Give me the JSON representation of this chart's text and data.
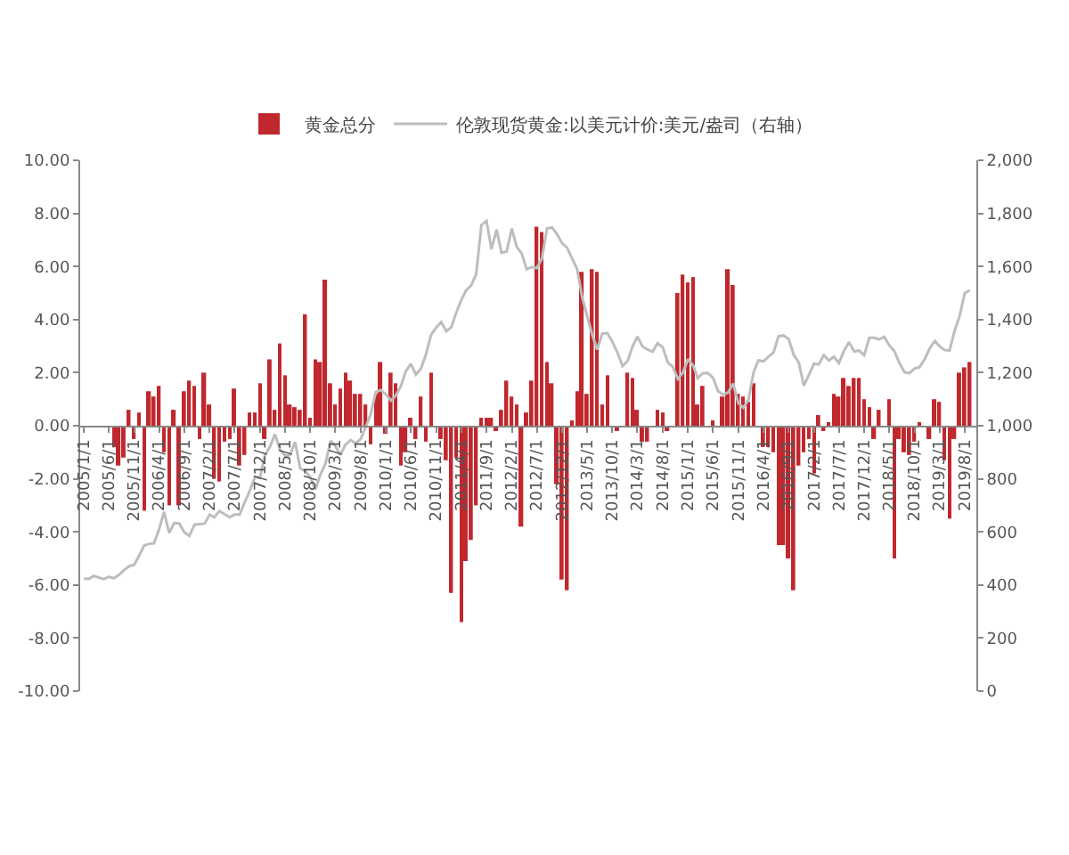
{
  "chart_data": {
    "type": "bar",
    "x": [
      "2005-01",
      "2005-02",
      "2005-03",
      "2005-04",
      "2005-05",
      "2005-06",
      "2005-07",
      "2005-08",
      "2005-09",
      "2005-10",
      "2005-11",
      "2005-12",
      "2006-01",
      "2006-02",
      "2006-03",
      "2006-04",
      "2006-05",
      "2006-06",
      "2006-07",
      "2006-08",
      "2006-09",
      "2006-10",
      "2006-11",
      "2006-12",
      "2007-01",
      "2007-02",
      "2007-03",
      "2007-04",
      "2007-05",
      "2007-06",
      "2007-07",
      "2007-08",
      "2007-09",
      "2007-10",
      "2007-11",
      "2007-12",
      "2008-01",
      "2008-02",
      "2008-03",
      "2008-04",
      "2008-05",
      "2008-06",
      "2008-07",
      "2008-08",
      "2008-09",
      "2008-10",
      "2008-11",
      "2008-12",
      "2009-01",
      "2009-02",
      "2009-03",
      "2009-04",
      "2009-05",
      "2009-06",
      "2009-07",
      "2009-08",
      "2009-09",
      "2009-10",
      "2009-11",
      "2009-12",
      "2010-01",
      "2010-02",
      "2010-03",
      "2010-04",
      "2010-05",
      "2010-06",
      "2010-07",
      "2010-08",
      "2010-09",
      "2010-10",
      "2010-11",
      "2010-12",
      "2011-01",
      "2011-02",
      "2011-03",
      "2011-04",
      "2011-05",
      "2011-06",
      "2011-07",
      "2011-08",
      "2011-09",
      "2011-10",
      "2011-11",
      "2011-12",
      "2012-01",
      "2012-02",
      "2012-03",
      "2012-04",
      "2012-05",
      "2012-06",
      "2012-07",
      "2012-08",
      "2012-09",
      "2012-10",
      "2012-11",
      "2012-12",
      "2013-01",
      "2013-02",
      "2013-03",
      "2013-04",
      "2013-05",
      "2013-06",
      "2013-07",
      "2013-08",
      "2013-09",
      "2013-10",
      "2013-11",
      "2013-12",
      "2014-01",
      "2014-02",
      "2014-03",
      "2014-04",
      "2014-05",
      "2014-06",
      "2014-07",
      "2014-08",
      "2014-09",
      "2014-10",
      "2014-11",
      "2014-12",
      "2015-01",
      "2015-02",
      "2015-03",
      "2015-04",
      "2015-05",
      "2015-06",
      "2015-07",
      "2015-08",
      "2015-09",
      "2015-10",
      "2015-11",
      "2015-12",
      "2016-01",
      "2016-02",
      "2016-03",
      "2016-04",
      "2016-05",
      "2016-06",
      "2016-07",
      "2016-08",
      "2016-09",
      "2016-10",
      "2016-11",
      "2016-12",
      "2017-01",
      "2017-02",
      "2017-03",
      "2017-04",
      "2017-05",
      "2017-06",
      "2017-07",
      "2017-08",
      "2017-09",
      "2017-10",
      "2017-11",
      "2017-12",
      "2018-01",
      "2018-02",
      "2018-03",
      "2018-04",
      "2018-05",
      "2018-06",
      "2018-07",
      "2018-08",
      "2018-09",
      "2018-10",
      "2018-11",
      "2018-12",
      "2019-01",
      "2019-02",
      "2019-03",
      "2019-04",
      "2019-05",
      "2019-06",
      "2019-07",
      "2019-08",
      "2019-09"
    ],
    "series": [
      {
        "name": "黄金总分",
        "color": "#c0282d",
        "values": [
          null,
          null,
          null,
          null,
          null,
          null,
          -0.8,
          -1.5,
          -1.2,
          0.6,
          -0.5,
          0.5,
          -3.2,
          1.3,
          1.1,
          1.5,
          -1.0,
          -3.0,
          0.6,
          -3.0,
          1.3,
          1.7,
          1.5,
          -0.5,
          2.0,
          0.8,
          -2.0,
          -2.1,
          -0.6,
          -0.5,
          1.4,
          -1.5,
          -1.1,
          0.5,
          0.5,
          1.6,
          -0.5,
          2.5,
          0.6,
          3.1,
          1.9,
          0.8,
          0.7,
          0.6,
          4.2,
          0.3,
          2.5,
          2.4,
          5.5,
          1.6,
          0.8,
          1.4,
          2.0,
          1.7,
          1.2,
          1.2,
          0.8,
          -0.7,
          1.2,
          2.4,
          -0.3,
          2.0,
          1.6,
          -1.5,
          -1.0,
          0.3,
          -0.5,
          1.1,
          -0.6,
          2.0,
          null,
          -0.5,
          -1.3,
          -6.3,
          -1.2,
          -7.4,
          -5.1,
          -4.3,
          -3.0,
          0.3,
          0.3,
          0.3,
          -0.2,
          0.6,
          1.7,
          1.1,
          0.8,
          -3.8,
          0.5,
          1.7,
          7.5,
          7.3,
          2.4,
          1.6,
          -2.2,
          -5.8,
          -6.2,
          0.2,
          1.3,
          5.8,
          1.2,
          5.9,
          5.8,
          0.8,
          1.9,
          null,
          -0.2,
          null,
          2.0,
          1.8,
          0.6,
          -0.6,
          -0.6,
          null,
          0.6,
          0.5,
          -0.2,
          null,
          5.0,
          5.7,
          5.4,
          5.6,
          0.8,
          1.5,
          null,
          0.2,
          null,
          1.1,
          5.9,
          5.3,
          1.2,
          1.1,
          0.9,
          1.6,
          null,
          -0.8,
          -0.8,
          -1.0,
          -4.5,
          -4.5,
          -5.0,
          -6.2,
          -1.5,
          -1.0,
          -0.5,
          -1.8,
          0.4,
          -0.2,
          0.1,
          1.2,
          1.1,
          1.8,
          1.5,
          1.8,
          1.8,
          1.0,
          0.7,
          -0.5,
          0.6,
          null,
          1.0,
          -5.0,
          -0.5,
          -1.0,
          -1.1,
          -0.6,
          0.1,
          null,
          -0.5,
          1.0,
          0.9,
          -1.3,
          -3.5,
          -0.5,
          2.0,
          2.2,
          2.4
        ]
      },
      {
        "name": "伦敦现货黄金:以美元计价:美元/盎司（右轴）",
        "type": "line",
        "axis": "y2",
        "color": "#bdbdbd",
        "values": [
          424,
          423,
          434,
          428,
          422,
          431,
          425,
          438,
          456,
          470,
          476,
          510,
          549,
          555,
          557,
          610,
          676,
          596,
          633,
          632,
          598,
          585,
          627,
          629,
          631,
          665,
          655,
          679,
          667,
          655,
          665,
          665,
          713,
          754,
          806,
          803,
          889,
          922,
          968,
          909,
          888,
          890,
          939,
          839,
          829,
          806,
          760,
          816,
          858,
          943,
          924,
          890,
          928,
          946,
          934,
          949,
          996,
          1043,
          1127,
          1134,
          1118,
          1095,
          1113,
          1148,
          1205,
          1233,
          1193,
          1215,
          1271,
          1343,
          1370,
          1391,
          1356,
          1372,
          1424,
          1473,
          1510,
          1529,
          1572,
          1756,
          1772,
          1665,
          1739,
          1652,
          1656,
          1743,
          1675,
          1649,
          1589,
          1598,
          1594,
          1630,
          1744,
          1747,
          1721,
          1688,
          1670,
          1628,
          1592,
          1485,
          1414,
          1343,
          1287,
          1347,
          1349,
          1316,
          1275,
          1225,
          1244,
          1300,
          1336,
          1299,
          1287,
          1279,
          1311,
          1296,
          1239,
          1222,
          1176,
          1200,
          1251,
          1227,
          1179,
          1198,
          1199,
          1181,
          1131,
          1117,
          1125,
          1159,
          1086,
          1068,
          1097,
          1200,
          1246,
          1243,
          1260,
          1276,
          1337,
          1340,
          1326,
          1267,
          1238,
          1151,
          1192,
          1234,
          1231,
          1266,
          1246,
          1260,
          1236,
          1283,
          1315,
          1280,
          1283,
          1265,
          1331,
          1331,
          1325,
          1335,
          1303,
          1282,
          1238,
          1202,
          1198,
          1215,
          1221,
          1250,
          1291,
          1320,
          1300,
          1285,
          1284,
          1359,
          1413,
          1500,
          1510
        ]
      }
    ],
    "xlim": [
      "2004-12-10",
      "2019-10-10"
    ],
    "xticks": [
      {
        "value": "2005-01-01",
        "label": "2005/1/1"
      },
      {
        "value": "2005-06-01",
        "label": "2005/6/1"
      },
      {
        "value": "2005-11-01",
        "label": "2005/11/1"
      },
      {
        "value": "2006-04-01",
        "label": "2006/4/1"
      },
      {
        "value": "2006-09-01",
        "label": "2006/9/1"
      },
      {
        "value": "2007-02-01",
        "label": "2007/2/1"
      },
      {
        "value": "2007-07-01",
        "label": "2007/7/1"
      },
      {
        "value": "2007-12-01",
        "label": "2007/12/1"
      },
      {
        "value": "2008-05-01",
        "label": "2008/5/1"
      },
      {
        "value": "2008-10-01",
        "label": "2008/10/1"
      },
      {
        "value": "2009-03-01",
        "label": "2009/3/1"
      },
      {
        "value": "2009-08-01",
        "label": "2009/8/1"
      },
      {
        "value": "2010-01-01",
        "label": "2010/1/1"
      },
      {
        "value": "2010-06-01",
        "label": "2010/6/1"
      },
      {
        "value": "2010-11-01",
        "label": "2010/11/1"
      },
      {
        "value": "2011-04-01",
        "label": "2011/4/1"
      },
      {
        "value": "2011-09-01",
        "label": "2011/9/1"
      },
      {
        "value": "2012-02-01",
        "label": "2012/2/1"
      },
      {
        "value": "2012-07-01",
        "label": "2012/7/1"
      },
      {
        "value": "2012-12-01",
        "label": "2012/12/1"
      },
      {
        "value": "2013-05-01",
        "label": "2013/5/1"
      },
      {
        "value": "2013-10-01",
        "label": "2013/10/1"
      },
      {
        "value": "2014-03-01",
        "label": "2014/3/1"
      },
      {
        "value": "2014-08-01",
        "label": "2014/8/1"
      },
      {
        "value": "2015-01-01",
        "label": "2015/1/1"
      },
      {
        "value": "2015-06-01",
        "label": "2015/6/1"
      },
      {
        "value": "2015-11-01",
        "label": "2015/11/1"
      },
      {
        "value": "2016-04-01",
        "label": "2016/4/1"
      },
      {
        "value": "2016-09-01",
        "label": "2016/9/1"
      },
      {
        "value": "2017-02-01",
        "label": "2017/2/1"
      },
      {
        "value": "2017-07-01",
        "label": "2017/7/1"
      },
      {
        "value": "2017-12-01",
        "label": "2017/12/1"
      },
      {
        "value": "2018-05-01",
        "label": "2018/5/1"
      },
      {
        "value": "2018-10-01",
        "label": "2018/10/1"
      },
      {
        "value": "2019-03-01",
        "label": "2019/3/1"
      },
      {
        "value": "2019-08-01",
        "label": "2019/8/1"
      }
    ],
    "ylim": [
      -10,
      10
    ],
    "yticks": [
      {
        "value": -10,
        "label": "-10.00"
      },
      {
        "value": -8,
        "label": "-8.00"
      },
      {
        "value": -6,
        "label": "-6.00"
      },
      {
        "value": -4,
        "label": "-4.00"
      },
      {
        "value": -2,
        "label": "-2.00"
      },
      {
        "value": 0,
        "label": "0.00"
      },
      {
        "value": 2,
        "label": "2.00"
      },
      {
        "value": 4,
        "label": "4.00"
      },
      {
        "value": 6,
        "label": "6.00"
      },
      {
        "value": 8,
        "label": "8.00"
      },
      {
        "value": 10,
        "label": "10.00"
      }
    ],
    "y2lim": [
      0,
      2000
    ],
    "y2ticks": [
      0,
      200,
      400,
      600,
      800,
      {
        "value": 1000,
        "label": "1,000"
      },
      {
        "value": 1200,
        "label": "1,200"
      },
      {
        "value": 1400,
        "label": "1,400"
      },
      {
        "value": 1600,
        "label": "1,600"
      },
      {
        "value": 1800,
        "label": "1,800"
      },
      {
        "value": 2000,
        "label": "2,000"
      }
    ],
    "legend": "top"
  }
}
